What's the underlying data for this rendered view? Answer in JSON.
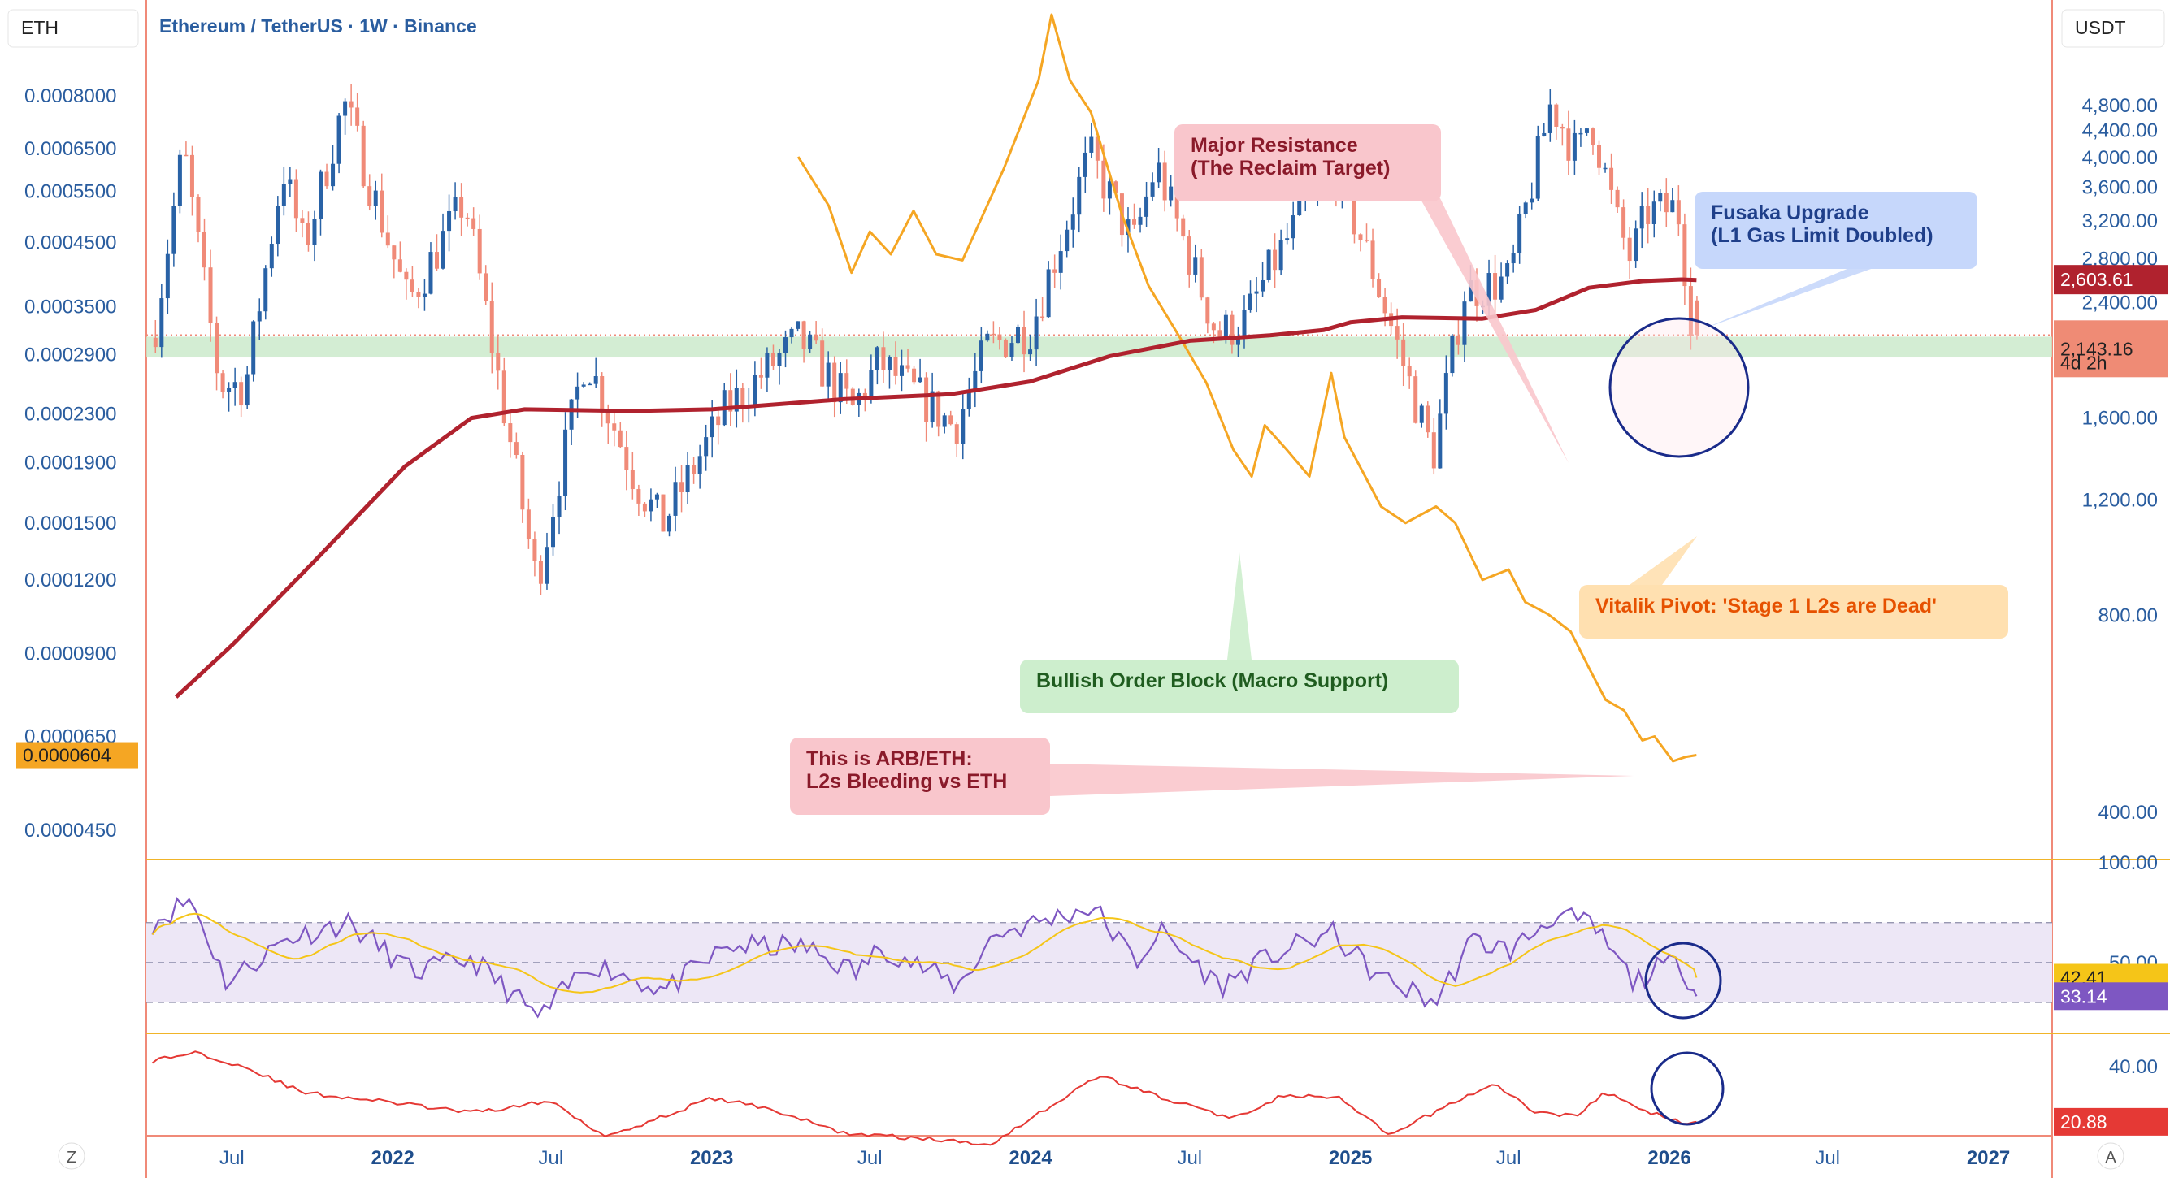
{
  "header": {
    "title": "Ethereum / TetherUS · 1W · Binance",
    "left_symbol": "ETH",
    "right_symbol": "USDT"
  },
  "colors": {
    "up": "#2962a6",
    "down": "#f08a78",
    "ma": "#b0222e",
    "arb_line": "#f5a623",
    "support_zone": "#c8e8c8",
    "rsi_line": "#7e57c2",
    "rsi_ma": "#f5c518",
    "rsi_band": "#ede7f6",
    "adx_line": "#e53935",
    "panel_separator": "#f0b429",
    "axis_text": "#2a5d9f",
    "frame": "#f08a78"
  },
  "corner_buttons": {
    "left": "Z",
    "right": "A"
  },
  "chart_data": [
    {
      "type": "candlestick",
      "title": "Ethereum / TetherUS · 1W · Binance",
      "y_scale": "log",
      "ylim": [
        350,
        5200
      ],
      "x_tick_labels": [
        "Jul",
        "2022",
        "Jul",
        "2023",
        "Jul",
        "2024",
        "Jul",
        "2025",
        "Jul",
        "2026",
        "Jul",
        "2027"
      ],
      "right_axis_ticks": [
        "400.00",
        "800.00",
        "1,200.00",
        "1,600.00",
        "2,400.00",
        "2,800.00",
        "3,200.00",
        "3,600.00",
        "4,000.00",
        "4,400.00",
        "4,800.00"
      ],
      "right_axis_values": [
        400,
        800,
        1200,
        1600,
        2400,
        2800,
        3200,
        3600,
        4000,
        4400,
        4800
      ],
      "left_axis_ticks": [
        "0.0008000",
        "0.0006500",
        "0.0005500",
        "0.0004500",
        "0.0003500",
        "0.0002900",
        "0.0002300",
        "0.0001900",
        "0.0001500",
        "0.0001200",
        "0.0000900",
        "0.0000450"
      ],
      "left_axis_values": [
        0.0008,
        0.00065,
        0.00055,
        0.00045,
        0.00035,
        0.00029,
        0.00023,
        0.00019,
        0.00015,
        0.00012,
        9e-05,
        4.5e-05
      ],
      "left_axis_hidden_tick": "0.0000650",
      "price_path": [
        [
          "2021-04-01",
          1950
        ],
        [
          "2021-05-10",
          4150
        ],
        [
          "2021-06-20",
          1800
        ],
        [
          "2021-07-20",
          1800
        ],
        [
          "2021-09-01",
          3850
        ],
        [
          "2021-09-25",
          2900
        ],
        [
          "2021-11-10",
          4850
        ],
        [
          "2022-01-22",
          2400
        ],
        [
          "2022-03-28",
          3450
        ],
        [
          "2022-06-18",
          900
        ],
        [
          "2022-08-13",
          2000
        ],
        [
          "2022-10-10",
          1280
        ],
        [
          "2022-11-09",
          1100
        ],
        [
          "2023-01-20",
          1650
        ],
        [
          "2023-04-15",
          2120
        ],
        [
          "2023-06-15",
          1650
        ],
        [
          "2023-07-15",
          1950
        ],
        [
          "2023-10-10",
          1550
        ],
        [
          "2023-11-15",
          2050
        ],
        [
          "2024-01-05",
          2200
        ],
        [
          "2024-03-12",
          4050
        ],
        [
          "2024-05-01",
          2950
        ],
        [
          "2024-05-27",
          3900
        ],
        [
          "2024-08-05",
          2150
        ],
        [
          "2024-09-06",
          2250
        ],
        [
          "2024-10-01",
          2650
        ],
        [
          "2024-12-15",
          3950
        ],
        [
          "2025-02-01",
          2650
        ],
        [
          "2025-04-09",
          1400
        ],
        [
          "2025-05-15",
          2500
        ],
        [
          "2025-07-05",
          2600
        ],
        [
          "2025-08-22",
          4850
        ],
        [
          "2025-09-22",
          4000
        ],
        [
          "2025-10-06",
          4650
        ],
        [
          "2025-11-05",
          3200
        ],
        [
          "2025-11-21",
          2800
        ],
        [
          "2025-12-10",
          3300
        ],
        [
          "2026-01-14",
          3350
        ],
        [
          "2026-02-01",
          2150
        ]
      ],
      "last_candle": {
        "open": 2420,
        "high": 2460,
        "low": 2110,
        "close": 2143.16
      },
      "series": [
        {
          "name": "MA",
          "price_label": "2,603.61",
          "points": [
            [
              "2021-04-28",
              600
            ],
            [
              "2021-07-01",
              720
            ],
            [
              "2021-10-01",
              960
            ],
            [
              "2022-01-15",
              1350
            ],
            [
              "2022-04-01",
              1600
            ],
            [
              "2022-06-01",
              1650
            ],
            [
              "2022-10-01",
              1640
            ],
            [
              "2023-01-01",
              1650
            ],
            [
              "2023-06-01",
              1710
            ],
            [
              "2023-10-01",
              1740
            ],
            [
              "2024-01-01",
              1820
            ],
            [
              "2024-04-01",
              1990
            ],
            [
              "2024-07-01",
              2100
            ],
            [
              "2024-10-01",
              2140
            ],
            [
              "2024-12-01",
              2180
            ],
            [
              "2025-01-01",
              2240
            ],
            [
              "2025-03-01",
              2280
            ],
            [
              "2025-06-01",
              2270
            ],
            [
              "2025-08-01",
              2340
            ],
            [
              "2025-10-01",
              2530
            ],
            [
              "2025-12-01",
              2590
            ],
            [
              "2026-01-15",
              2605
            ],
            [
              "2026-02-01",
              2600
            ]
          ]
        },
        {
          "name": "ARB/ETH",
          "price_label": "0.0000604",
          "points": [
            [
              "2023-04-10",
              0.00063
            ],
            [
              "2023-05-15",
              0.00052
            ],
            [
              "2023-06-10",
              0.0004
            ],
            [
              "2023-07-01",
              0.00047
            ],
            [
              "2023-07-25",
              0.00043
            ],
            [
              "2023-08-20",
              0.00051
            ],
            [
              "2023-09-15",
              0.00043
            ],
            [
              "2023-10-15",
              0.00042
            ],
            [
              "2023-12-01",
              0.0006
            ],
            [
              "2024-01-10",
              0.00085
            ],
            [
              "2024-01-25",
              0.0011
            ],
            [
              "2024-02-15",
              0.00085
            ],
            [
              "2024-03-10",
              0.00075
            ],
            [
              "2024-04-15",
              0.0005
            ],
            [
              "2024-05-15",
              0.00038
            ],
            [
              "2024-06-20",
              0.00031
            ],
            [
              "2024-07-20",
              0.00026
            ],
            [
              "2024-08-20",
              0.0002
            ],
            [
              "2024-09-10",
              0.00018
            ],
            [
              "2024-09-25",
              0.00022
            ],
            [
              "2024-10-20",
              0.0002
            ],
            [
              "2024-11-15",
              0.00018
            ],
            [
              "2024-12-10",
              0.00027
            ],
            [
              "2024-12-25",
              0.00021
            ],
            [
              "2025-02-05",
              0.00016
            ],
            [
              "2025-03-05",
              0.00015
            ],
            [
              "2025-04-09",
              0.00016
            ],
            [
              "2025-05-01",
              0.00015
            ],
            [
              "2025-06-01",
              0.00012
            ],
            [
              "2025-07-01",
              0.000125
            ],
            [
              "2025-07-20",
              0.00011
            ],
            [
              "2025-08-15",
              0.000105
            ],
            [
              "2025-09-10",
              9.8e-05
            ],
            [
              "2025-10-01",
              8.5e-05
            ],
            [
              "2025-10-20",
              7.5e-05
            ],
            [
              "2025-11-10",
              7.2e-05
            ],
            [
              "2025-12-01",
              6.4e-05
            ],
            [
              "2025-12-15",
              6.5e-05
            ],
            [
              "2026-01-05",
              5.9e-05
            ],
            [
              "2026-01-20",
              6e-05
            ],
            [
              "2026-02-01",
              6.04e-05
            ]
          ]
        }
      ],
      "support_zone": {
        "from": 1980,
        "to": 2130
      },
      "last_price_label": "2,143.16",
      "countdown_label": "4d 2h",
      "annotations": [
        {
          "id": "major-resistance",
          "lines": [
            "Major Resistance",
            "(The Reclaim Target)"
          ]
        },
        {
          "id": "fusaka",
          "lines": [
            "Fusaka Upgrade",
            "(L1 Gas Limit Doubled)"
          ]
        },
        {
          "id": "vitalik",
          "lines": [
            "Vitalik Pivot: 'Stage 1 L2s are Dead'"
          ]
        },
        {
          "id": "order-block",
          "lines": [
            "Bullish Order Block (Macro Support)"
          ]
        },
        {
          "id": "arb",
          "lines": [
            "This is ARB/ETH:",
            "L2s Bleeding vs ETH"
          ]
        }
      ]
    },
    {
      "type": "line",
      "ylim": [
        25,
        100
      ],
      "right_axis_ticks": [
        "100.00",
        "50.00",
        "30.00"
      ],
      "right_axis_values": [
        100,
        50,
        30
      ],
      "band": [
        30,
        70
      ],
      "series": [
        {
          "name": "RSI",
          "last_label": "33.14"
        },
        {
          "name": "RSI MA",
          "last_label": "42.41"
        }
      ],
      "rsi_path": [
        [
          "2021-04-01",
          70
        ],
        [
          "2021-05-15",
          82
        ],
        [
          "2021-06-25",
          40
        ],
        [
          "2021-09-01",
          62
        ],
        [
          "2021-11-10",
          70
        ],
        [
          "2022-01-25",
          45
        ],
        [
          "2022-04-01",
          52
        ],
        [
          "2022-06-18",
          22
        ],
        [
          "2022-08-15",
          50
        ],
        [
          "2022-11-09",
          36
        ],
        [
          "2023-01-20",
          58
        ],
        [
          "2023-04-15",
          58
        ],
        [
          "2023-06-15",
          45
        ],
        [
          "2023-07-15",
          58
        ],
        [
          "2023-10-10",
          38
        ],
        [
          "2023-11-20",
          64
        ],
        [
          "2024-03-12",
          78
        ],
        [
          "2024-05-01",
          50
        ],
        [
          "2024-05-27",
          66
        ],
        [
          "2024-08-05",
          38
        ],
        [
          "2024-10-01",
          53
        ],
        [
          "2024-12-10",
          65
        ],
        [
          "2025-02-01",
          43
        ],
        [
          "2025-04-09",
          30
        ],
        [
          "2025-05-20",
          61
        ],
        [
          "2025-07-05",
          56
        ],
        [
          "2025-08-22",
          74
        ],
        [
          "2025-10-06",
          68
        ],
        [
          "2025-11-21",
          40
        ],
        [
          "2025-12-20",
          47
        ],
        [
          "2026-01-14",
          50
        ],
        [
          "2026-02-01",
          33.14
        ]
      ]
    },
    {
      "type": "line",
      "ylim": [
        8,
        46
      ],
      "right_axis_ticks": [
        "40.00"
      ],
      "right_axis_values": [
        40
      ],
      "series": [
        {
          "name": "ADX",
          "last_label": "20.88"
        }
      ],
      "adx_path": [
        [
          "2021-04-01",
          42
        ],
        [
          "2021-05-20",
          45
        ],
        [
          "2021-07-15",
          40
        ],
        [
          "2021-09-20",
          31
        ],
        [
          "2021-12-20",
          28
        ],
        [
          "2022-04-01",
          24
        ],
        [
          "2022-07-01",
          28
        ],
        [
          "2022-09-01",
          16
        ],
        [
          "2022-11-01",
          22
        ],
        [
          "2023-01-01",
          29
        ],
        [
          "2023-03-01",
          26
        ],
        [
          "2023-06-01",
          17
        ],
        [
          "2023-09-01",
          15
        ],
        [
          "2023-11-15",
          13
        ],
        [
          "2024-01-01",
          22
        ],
        [
          "2024-03-20",
          37
        ],
        [
          "2024-06-01",
          29
        ],
        [
          "2024-08-20",
          22
        ],
        [
          "2024-10-15",
          30
        ],
        [
          "2024-12-20",
          29
        ],
        [
          "2025-02-15",
          16
        ],
        [
          "2025-05-01",
          28
        ],
        [
          "2025-06-15",
          34
        ],
        [
          "2025-08-01",
          24
        ],
        [
          "2025-09-15",
          23
        ],
        [
          "2025-10-20",
          31
        ],
        [
          "2025-12-01",
          25
        ],
        [
          "2026-01-10",
          21
        ],
        [
          "2026-02-01",
          20.88
        ]
      ]
    }
  ]
}
